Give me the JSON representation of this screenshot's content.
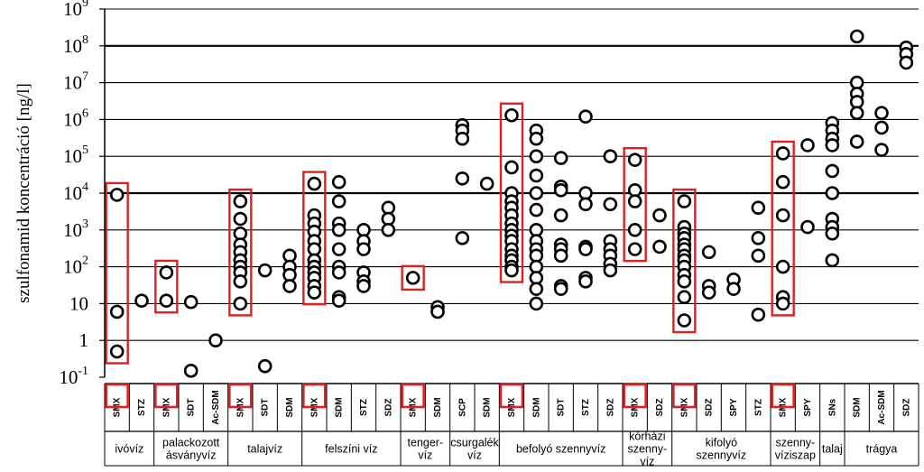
{
  "chart_data": {
    "type": "scatter",
    "ylabel": "szulfonamid koncentráció [ng/l]",
    "yscale": "log",
    "ylim": [
      0.1,
      1000000000
    ],
    "y_ticks": [
      {
        "base": "10",
        "exp": "-1",
        "value": 0.1
      },
      {
        "base": "1",
        "exp": "",
        "value": 1
      },
      {
        "base": "10",
        "exp": "",
        "value": 10
      },
      {
        "base": "10",
        "exp": "2",
        "value": 100
      },
      {
        "base": "10",
        "exp": "3",
        "value": 1000
      },
      {
        "base": "10",
        "exp": "4",
        "value": 10000
      },
      {
        "base": "10",
        "exp": "5",
        "value": 100000
      },
      {
        "base": "10",
        "exp": "6",
        "value": 1000000
      },
      {
        "base": "10",
        "exp": "7",
        "value": 10000000
      },
      {
        "base": "10",
        "exp": "8",
        "value": 100000000
      },
      {
        "base": "10",
        "exp": "9",
        "value": 1000000000
      }
    ],
    "grid": true,
    "highlight_color": "#e02020",
    "categories": [
      {
        "label": "SMX",
        "group": "ivóvíz",
        "highlight": true,
        "values": [
          9000,
          6,
          0.5
        ]
      },
      {
        "label": "STZ",
        "group": "ivóvíz",
        "highlight": false,
        "values": [
          12
        ]
      },
      {
        "label": "SMX",
        "group": "palackozott ásványvíz",
        "highlight": true,
        "values": [
          70,
          12
        ]
      },
      {
        "label": "SDT",
        "group": "palackozott ásványvíz",
        "highlight": false,
        "values": [
          11,
          0.15
        ]
      },
      {
        "label": "Ac-SDM",
        "group": "palackozott ásványvíz",
        "highlight": false,
        "values": [
          1
        ]
      },
      {
        "label": "SMX",
        "group": "talajvíz",
        "highlight": true,
        "values": [
          6000,
          2000,
          800,
          400,
          250,
          150,
          100,
          70,
          40,
          10
        ]
      },
      {
        "label": "SDT",
        "group": "talajvíz",
        "highlight": false,
        "values": [
          80,
          0.2
        ]
      },
      {
        "label": "SDM",
        "group": "talajvíz",
        "highlight": false,
        "values": [
          200,
          100,
          60,
          30
        ]
      },
      {
        "label": "SMX",
        "group": "felszíni víz",
        "highlight": true,
        "values": [
          18000,
          2500,
          1500,
          900,
          500,
          300,
          150,
          100,
          70,
          50,
          30,
          20
        ]
      },
      {
        "label": "SDM",
        "group": "felszíni víz",
        "highlight": false,
        "values": [
          20000,
          6000,
          1500,
          1000,
          300,
          100,
          70,
          15,
          12
        ]
      },
      {
        "label": "STZ",
        "group": "felszíni víz",
        "highlight": false,
        "values": [
          1000,
          500,
          300,
          70,
          40,
          30
        ]
      },
      {
        "label": "SDZ",
        "group": "felszíni víz",
        "highlight": false,
        "values": [
          4000,
          2000,
          1000
        ]
      },
      {
        "label": "SMX",
        "group": "tenger-víz",
        "highlight": true,
        "values": [
          50
        ]
      },
      {
        "label": "SDM",
        "group": "tenger-víz",
        "highlight": false,
        "values": [
          8,
          6
        ]
      },
      {
        "label": "SCP",
        "group": "csurgalék víz",
        "highlight": false,
        "values": [
          700000,
          500000,
          300000,
          25000,
          600
        ]
      },
      {
        "label": "SDM",
        "group": "csurgalék víz",
        "highlight": false,
        "values": [
          18000
        ]
      },
      {
        "label": "SMX",
        "group": "befolyó szennyvíz",
        "highlight": true,
        "values": [
          1300000,
          50000,
          10000,
          6000,
          4000,
          2500,
          1500,
          1000,
          700,
          500,
          300,
          200,
          150,
          100,
          80
        ]
      },
      {
        "label": "SDM",
        "group": "befolyó szennyvíz",
        "highlight": false,
        "values": [
          500000,
          300000,
          100000,
          30000,
          10000,
          3500,
          1000,
          500,
          300,
          200,
          100,
          50,
          25,
          10
        ]
      },
      {
        "label": "SDT",
        "group": "befolyó szennyvíz",
        "highlight": false,
        "values": [
          90000,
          15000,
          12000,
          2500,
          400,
          300,
          200,
          30,
          25
        ]
      },
      {
        "label": "STZ",
        "group": "befolyó szennyvíz",
        "highlight": false,
        "values": [
          1200000,
          10000,
          5000,
          350,
          300,
          50,
          40
        ]
      },
      {
        "label": "SDZ",
        "group": "befolyó szennyvíz",
        "highlight": false,
        "values": [
          100000,
          5000,
          500,
          300,
          200,
          120,
          80
        ]
      },
      {
        "label": "SMX",
        "group": "kórházi szenny-víz",
        "highlight": true,
        "values": [
          80000,
          12000,
          6000,
          1000,
          300
        ]
      },
      {
        "label": "SDZ",
        "group": "kórházi szenny-víz",
        "highlight": false,
        "values": [
          2500,
          350
        ]
      },
      {
        "label": "SMX",
        "group": "kifolyó szennyvíz",
        "highlight": true,
        "values": [
          6000,
          1200,
          800,
          600,
          400,
          300,
          200,
          150,
          100,
          60,
          40,
          15,
          3.5
        ]
      },
      {
        "label": "SDZ",
        "group": "kifolyó szennyvíz",
        "highlight": false,
        "values": [
          250,
          30,
          20
        ]
      },
      {
        "label": "SPY",
        "group": "kifolyó szennyvíz",
        "highlight": false,
        "values": [
          45,
          25
        ]
      },
      {
        "label": "STZ",
        "group": "kifolyó szennyvíz",
        "highlight": false,
        "values": [
          4000,
          600,
          200,
          5
        ]
      },
      {
        "label": "SMX",
        "group": "szenny-víziszap",
        "highlight": true,
        "values": [
          120000,
          20000,
          2500,
          100,
          15,
          10
        ]
      },
      {
        "label": "SPY",
        "group": "szenny-víziszap",
        "highlight": false,
        "values": [
          200000,
          1200
        ]
      },
      {
        "label": "SNs",
        "group": "talaj",
        "highlight": false,
        "values": [
          800000,
          500000,
          300000,
          200000,
          40000,
          10000,
          2000,
          1200,
          800,
          150
        ]
      },
      {
        "label": "SDM",
        "group": "trágya",
        "highlight": false,
        "values": [
          180000000,
          10000000,
          5000000,
          3000000,
          1500000,
          250000
        ]
      },
      {
        "label": "Ac-SDM",
        "group": "trágya",
        "highlight": false,
        "values": [
          1500000,
          600000,
          150000
        ]
      },
      {
        "label": "SDZ",
        "group": "trágya",
        "highlight": false,
        "values": [
          90000000,
          60000000,
          35000000
        ]
      }
    ],
    "groups": [
      {
        "lines": [
          "ivóvíz"
        ]
      },
      {
        "lines": [
          "palackozott",
          "ásványvíz"
        ]
      },
      {
        "lines": [
          "talajvíz"
        ]
      },
      {
        "lines": [
          "felszíni víz"
        ]
      },
      {
        "lines": [
          "tenger-",
          "víz"
        ]
      },
      {
        "lines": [
          "csurgalék",
          "víz"
        ]
      },
      {
        "lines": [
          "befolyó szennyvíz"
        ]
      },
      {
        "lines": [
          "kórházi",
          "szenny-",
          "víz"
        ]
      },
      {
        "lines": [
          "kifolyó",
          "szennyvíz"
        ]
      },
      {
        "lines": [
          "szenny-",
          "víziszap"
        ]
      },
      {
        "lines": [
          "talaj"
        ]
      },
      {
        "lines": [
          "trágya"
        ]
      }
    ]
  }
}
